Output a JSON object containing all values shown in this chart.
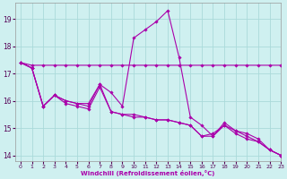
{
  "xlabel": "Windchill (Refroidissement éolien,°C)",
  "background_color": "#cff0f0",
  "grid_color": "#aadada",
  "line_color": "#aa00aa",
  "xlim": [
    -0.5,
    23
  ],
  "ylim": [
    13.8,
    19.6
  ],
  "yticks": [
    14,
    15,
    16,
    17,
    18,
    19
  ],
  "xticks": [
    0,
    1,
    2,
    3,
    4,
    5,
    6,
    7,
    8,
    9,
    10,
    11,
    12,
    13,
    14,
    15,
    16,
    17,
    18,
    19,
    20,
    21,
    22,
    23
  ],
  "series": [
    {
      "x": [
        0,
        1,
        2,
        3,
        4,
        5,
        6,
        7,
        8,
        9,
        10,
        11,
        12,
        13,
        14,
        15,
        16,
        17,
        18,
        19,
        20,
        21,
        22,
        23
      ],
      "y": [
        17.4,
        17.3,
        17.3,
        17.3,
        17.3,
        17.3,
        17.3,
        17.3,
        17.3,
        17.3,
        17.3,
        17.3,
        17.3,
        17.3,
        17.3,
        17.3,
        17.3,
        17.3,
        17.3,
        17.3,
        17.3,
        17.3,
        17.3,
        17.3
      ]
    },
    {
      "x": [
        0,
        1,
        2,
        3,
        4,
        5,
        6,
        7,
        8,
        9,
        10,
        11,
        12,
        13,
        14,
        15,
        16,
        17,
        18,
        19,
        20,
        21,
        22,
        23
      ],
      "y": [
        17.4,
        17.2,
        15.8,
        16.2,
        15.9,
        15.8,
        15.7,
        16.5,
        15.6,
        15.5,
        15.4,
        15.4,
        15.3,
        15.3,
        15.2,
        15.1,
        14.7,
        14.8,
        15.1,
        14.9,
        14.7,
        14.5,
        14.2,
        14.0
      ]
    },
    {
      "x": [
        0,
        1,
        2,
        3,
        4,
        5,
        6,
        7,
        8,
        9,
        10,
        11,
        12,
        13,
        14,
        15,
        16,
        17,
        18,
        19,
        20,
        21,
        22,
        23
      ],
      "y": [
        17.4,
        17.2,
        15.8,
        16.2,
        16.0,
        15.9,
        15.8,
        16.6,
        16.3,
        15.8,
        18.3,
        18.6,
        18.9,
        19.3,
        17.6,
        15.4,
        15.1,
        14.7,
        15.2,
        14.9,
        14.8,
        14.6,
        14.2,
        14.0
      ]
    },
    {
      "x": [
        0,
        1,
        2,
        3,
        4,
        5,
        6,
        7,
        8,
        9,
        10,
        11,
        12,
        13,
        14,
        15,
        16,
        17,
        18,
        19,
        20,
        21,
        22,
        23
      ],
      "y": [
        17.4,
        17.2,
        15.8,
        16.2,
        16.0,
        15.9,
        15.9,
        16.6,
        15.6,
        15.5,
        15.5,
        15.4,
        15.3,
        15.3,
        15.2,
        15.1,
        14.7,
        14.7,
        15.1,
        14.8,
        14.6,
        14.5,
        14.2,
        14.0
      ]
    }
  ]
}
